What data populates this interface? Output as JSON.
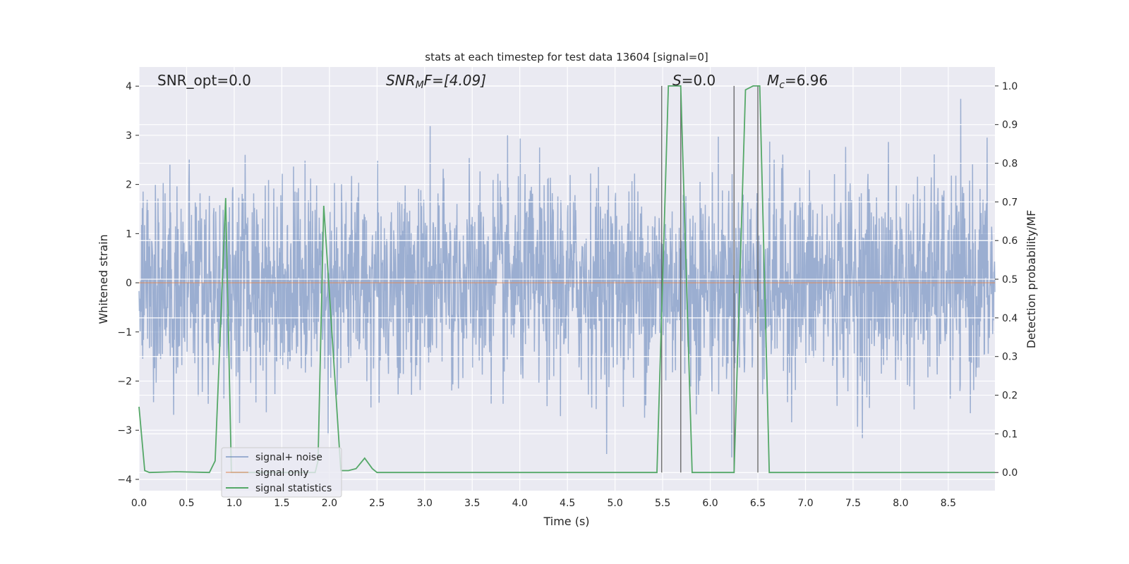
{
  "chart_data": {
    "type": "line",
    "title": "stats at each timestep for test data 13604 [signal=0]",
    "xlabel": "Time (s)",
    "ylabel": "Whitened strain",
    "ylabel_right": "Detection probability/MF",
    "xlim": [
      0,
      8.99
    ],
    "ylim": [
      -4.23,
      4.39
    ],
    "ylim_right": [
      -0.047,
      1.049
    ],
    "grid": true,
    "xticks": [
      "0.0",
      "0.5",
      "1.0",
      "1.5",
      "2.0",
      "2.5",
      "3.0",
      "3.5",
      "4.0",
      "4.5",
      "5.0",
      "5.5",
      "6.0",
      "6.5",
      "7.0",
      "7.5",
      "8.0",
      "8.5"
    ],
    "yticks": [
      "−4",
      "−3",
      "−2",
      "−1",
      "0",
      "1",
      "2",
      "3",
      "4"
    ],
    "yticks_right": [
      "0.0",
      "0.1",
      "0.2",
      "0.3",
      "0.4",
      "0.5",
      "0.6",
      "0.7",
      "0.8",
      "0.9",
      "1.0"
    ],
    "annotations": {
      "snr_opt": "SNR_opt=0.0",
      "snr_mf_base": "SNR",
      "snr_mf_sub": "M",
      "snr_mf_rest": "F=[4.09]",
      "s_var": "S",
      "s_rest": "=0.0",
      "mc_var": "M",
      "mc_sub": "c",
      "mc_rest": "=6.96"
    },
    "legend": {
      "placement": "lower-left",
      "entries": [
        "signal+ noise",
        "signal only",
        "signal statistics"
      ]
    },
    "colors": {
      "signal_noise": "#4c72b0",
      "signal_only": "#dd8452",
      "signal_statistics": "#55a868",
      "markers": "#555555",
      "background": "#eaeaf2"
    },
    "series": [
      {
        "name": "signal+ noise",
        "axis": "left",
        "description_values": "whitened noise samples, spread roughly ±1.5 with spikes to ±4"
      },
      {
        "name": "signal only",
        "axis": "left",
        "x": [
          0,
          8.99
        ],
        "y": [
          0,
          0
        ]
      },
      {
        "name": "signal statistics",
        "axis": "right",
        "x": [
          0,
          0.06,
          0.11,
          0.39,
          0.74,
          0.8,
          0.91,
          0.97,
          1.85,
          1.88,
          1.94,
          2.12,
          2.2,
          2.28,
          2.37,
          2.45,
          2.5,
          5.44,
          5.56,
          5.69,
          5.81,
          6.25,
          6.37,
          6.45,
          6.52,
          6.62,
          8.99
        ],
        "y": [
          0.17,
          0.005,
          0.0,
          0.002,
          0.0,
          0.03,
          0.71,
          0.0,
          0.0,
          0.03,
          0.69,
          0.005,
          0.005,
          0.01,
          0.037,
          0.01,
          0.0,
          0.0,
          1.0,
          1.0,
          0.0,
          0.0,
          0.99,
          1.0,
          1.0,
          0.0,
          0.0
        ]
      }
    ],
    "vertical_markers": [
      5.49,
      5.69,
      6.25,
      6.5
    ]
  }
}
